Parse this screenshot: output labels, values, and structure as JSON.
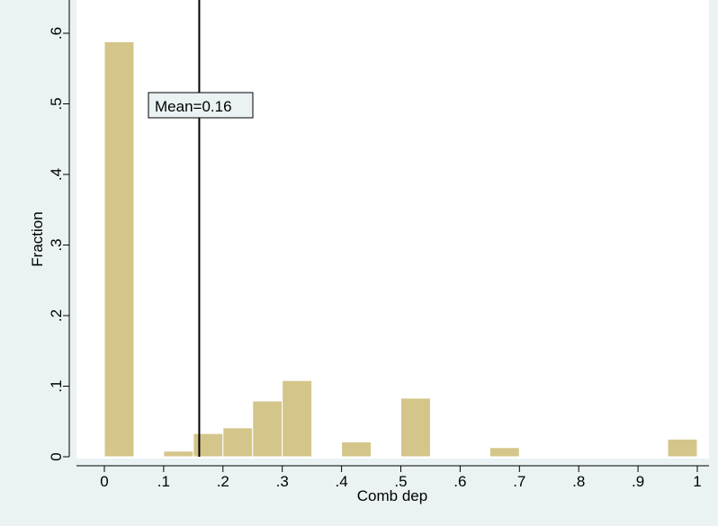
{
  "chart_data": {
    "type": "bar",
    "xlabel": "Comb dep",
    "ylabel": "Fraction",
    "xlim": [
      -0.05,
      1.02
    ],
    "ylim": [
      0,
      0.62
    ],
    "x_ticks": [
      {
        "value": 0,
        "label": "0"
      },
      {
        "value": 0.1,
        "label": ".1"
      },
      {
        "value": 0.2,
        "label": ".2"
      },
      {
        "value": 0.3,
        "label": ".3"
      },
      {
        "value": 0.4,
        "label": ".4"
      },
      {
        "value": 0.5,
        "label": ".5"
      },
      {
        "value": 0.6,
        "label": ".6"
      },
      {
        "value": 0.7,
        "label": ".7"
      },
      {
        "value": 0.8,
        "label": ".8"
      },
      {
        "value": 0.9,
        "label": ".9"
      },
      {
        "value": 1,
        "label": "1"
      }
    ],
    "y_ticks": [
      {
        "value": 0,
        "label": "0"
      },
      {
        "value": 0.1,
        "label": ".1"
      },
      {
        "value": 0.2,
        "label": ".2"
      },
      {
        "value": 0.3,
        "label": ".3"
      },
      {
        "value": 0.4,
        "label": ".4"
      },
      {
        "value": 0.5,
        "label": ".5"
      },
      {
        "value": 0.6,
        "label": ".6"
      }
    ],
    "bin_width": 0.05,
    "bars": [
      {
        "x_start": 0.0,
        "value": 0.588
      },
      {
        "x_start": 0.1,
        "value": 0.008
      },
      {
        "x_start": 0.15,
        "value": 0.033
      },
      {
        "x_start": 0.2,
        "value": 0.041
      },
      {
        "x_start": 0.25,
        "value": 0.079
      },
      {
        "x_start": 0.3,
        "value": 0.108
      },
      {
        "x_start": 0.4,
        "value": 0.021
      },
      {
        "x_start": 0.5,
        "value": 0.083
      },
      {
        "x_start": 0.6,
        "value": 0.001
      },
      {
        "x_start": 0.65,
        "value": 0.013
      },
      {
        "x_start": 0.8,
        "value": 0.001
      },
      {
        "x_start": 0.95,
        "value": 0.025
      }
    ],
    "mean_line": {
      "value": 0.16,
      "label": "Mean=0.16"
    },
    "grid": false,
    "colors": {
      "bar_fill": "#d4c58a",
      "bar_edge": "#ffffff",
      "plot_bg": "#ffffff",
      "outer_bg": "#eaf2f3",
      "annotation_fill": "#eaf2f3"
    }
  }
}
